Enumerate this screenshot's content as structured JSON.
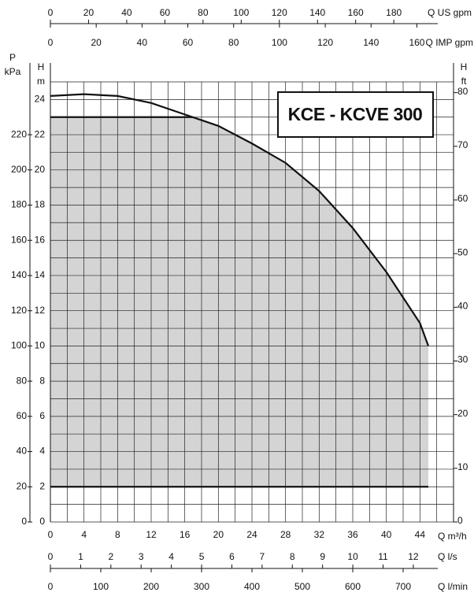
{
  "chart_data": {
    "type": "line",
    "title": "KCE - KCVE 300",
    "x_label": "Q m³/h",
    "y_label": "H",
    "y_unit": "m",
    "xlim": [
      0,
      48
    ],
    "xticks": [
      0,
      4,
      8,
      12,
      16,
      20,
      24,
      28,
      32,
      36,
      40,
      44
    ],
    "ylim": [
      0,
      25
    ],
    "yticks": [
      0,
      2,
      4,
      6,
      8,
      10,
      12,
      14,
      16,
      18,
      20,
      22,
      24
    ],
    "xgrid": [
      0,
      2,
      4,
      6,
      8,
      10,
      12,
      14,
      16,
      18,
      20,
      22,
      24,
      26,
      28,
      30,
      32,
      34,
      36,
      38,
      40,
      42,
      44,
      46,
      48
    ],
    "ygrid": [
      0,
      1,
      2,
      3,
      4,
      5,
      6,
      7,
      8,
      9,
      10,
      11,
      12,
      13,
      14,
      15,
      16,
      17,
      18,
      19,
      20,
      21,
      22,
      23,
      24,
      25
    ],
    "x": [
      0,
      4,
      8,
      12,
      16,
      20,
      24,
      28,
      32,
      36,
      40,
      44,
      45
    ],
    "series": [
      {
        "color": "#111111",
        "values": [
          24.2,
          24.3,
          24.2,
          23.8,
          23.15,
          22.5,
          21.5,
          20.4,
          18.8,
          16.7,
          14.2,
          11.3,
          10.0
        ]
      }
    ],
    "operating_range": {
      "hmax": 23,
      "hmin": 2,
      "qmax": 45,
      "color": "#d4d4d4"
    },
    "secondary_axes": [
      {
        "position": "top",
        "label": "Q US gpm",
        "lim": [
          0,
          211.3
        ],
        "ticks": [
          0,
          20,
          40,
          60,
          80,
          100,
          120,
          140,
          160,
          180
        ]
      },
      {
        "position": "top2",
        "label": "Q IMP gpm",
        "lim": [
          0,
          176
        ],
        "ticks": [
          0,
          20,
          40,
          60,
          80,
          100,
          120,
          140,
          160
        ]
      },
      {
        "position": "bottom",
        "label": "Q l/s",
        "lim": [
          0,
          13.33
        ],
        "ticks": [
          0,
          1,
          2,
          3,
          4,
          5,
          6,
          7,
          8,
          9,
          10,
          11,
          12
        ]
      },
      {
        "position": "bottom2",
        "label": "Q l/min",
        "lim": [
          0,
          800
        ],
        "ticks": [
          0,
          100,
          200,
          300,
          400,
          500,
          600,
          700
        ]
      },
      {
        "position": "left",
        "label": "P",
        "unit": "kPa",
        "lim": [
          0,
          250
        ],
        "ticks": [
          0,
          20,
          40,
          60,
          80,
          100,
          120,
          140,
          160,
          180,
          200,
          220
        ]
      },
      {
        "position": "right",
        "label": "H",
        "unit": "ft",
        "lim": [
          0,
          82
        ],
        "ticks": [
          0,
          10,
          20,
          30,
          40,
          50,
          60,
          70,
          80
        ]
      }
    ]
  }
}
